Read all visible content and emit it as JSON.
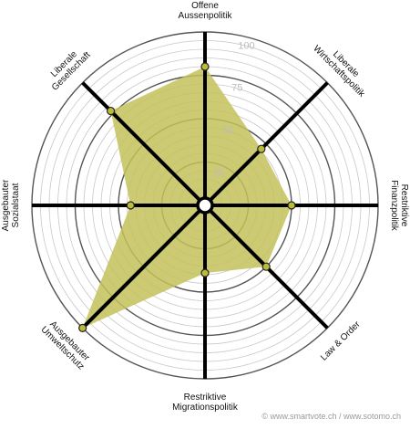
{
  "chart_data": {
    "type": "radar",
    "axes": [
      {
        "lines": [
          "Offene",
          "Aussenpolitik"
        ]
      },
      {
        "lines": [
          "Liberale",
          "Wirtschaftspolitik"
        ]
      },
      {
        "lines": [
          "Restriktive",
          "Finanzpolitik"
        ]
      },
      {
        "lines": [
          "Law & Order"
        ]
      },
      {
        "lines": [
          "Restriktive",
          "Migrationspolitik"
        ]
      },
      {
        "lines": [
          "Ausgebauter",
          "Umweltschutz"
        ]
      },
      {
        "lines": [
          "Ausgebauter",
          "Sozialstaat"
        ]
      },
      {
        "lines": [
          "Liberale",
          "Gesellschaft"
        ]
      }
    ],
    "values": [
      80,
      46,
      50,
      50,
      39,
      100,
      43,
      77
    ],
    "range": [
      0,
      100
    ],
    "ring_step": 5,
    "tick_labels": [
      "25",
      "50",
      "75",
      "100"
    ],
    "colors": {
      "fill": "#c3c25a",
      "point": "#bcbc3a",
      "axis": "#000000",
      "grid": "#c8c8c8",
      "grid_major": "#555555"
    }
  },
  "credit": "© www.smartvote.ch / www.sotomo.ch"
}
